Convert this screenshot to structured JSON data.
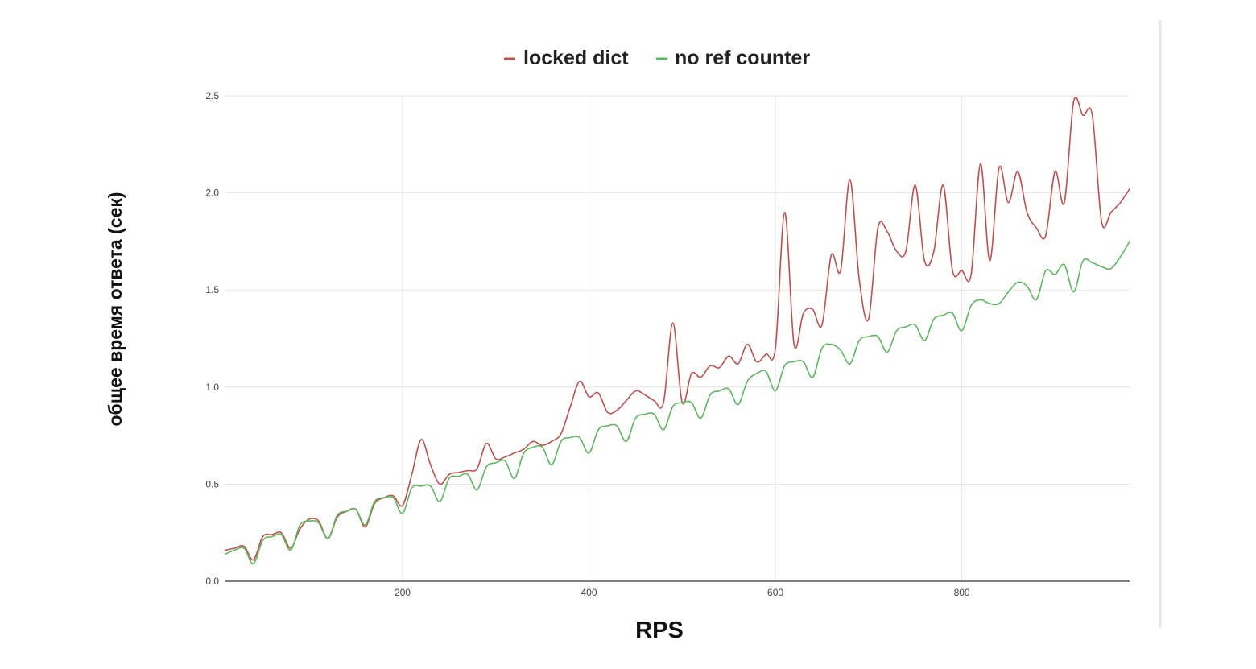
{
  "chart_data": {
    "type": "line",
    "title": "",
    "xlabel": "RPS",
    "ylabel": "общее время ответа (сек)",
    "xlim": [
      10,
      980
    ],
    "ylim": [
      0,
      2.5
    ],
    "x_ticks": [
      "200",
      "400",
      "600",
      "800"
    ],
    "y_ticks": [
      "0.0",
      "0.5",
      "1.0",
      "1.5",
      "2.0",
      "2.5"
    ],
    "grid": true,
    "legend_position": "top-center",
    "series": [
      {
        "name": "locked dict",
        "color": "#c0504d",
        "x": [
          10,
          20,
          30,
          40,
          50,
          60,
          70,
          80,
          90,
          100,
          110,
          120,
          130,
          140,
          150,
          160,
          170,
          180,
          190,
          200,
          210,
          220,
          230,
          240,
          250,
          260,
          270,
          280,
          290,
          300,
          310,
          320,
          330,
          340,
          350,
          360,
          370,
          380,
          390,
          400,
          410,
          420,
          430,
          440,
          450,
          460,
          470,
          480,
          490,
          500,
          510,
          520,
          530,
          540,
          550,
          560,
          570,
          580,
          590,
          600,
          610,
          620,
          630,
          640,
          650,
          660,
          670,
          680,
          690,
          700,
          710,
          720,
          730,
          740,
          750,
          760,
          770,
          780,
          790,
          800,
          810,
          820,
          830,
          840,
          850,
          860,
          870,
          880,
          890,
          900,
          910,
          920,
          930,
          940,
          950,
          960,
          970,
          980
        ],
        "values": [
          0.16,
          0.17,
          0.18,
          0.11,
          0.23,
          0.24,
          0.25,
          0.17,
          0.27,
          0.32,
          0.31,
          0.22,
          0.33,
          0.36,
          0.37,
          0.28,
          0.4,
          0.43,
          0.44,
          0.39,
          0.55,
          0.73,
          0.6,
          0.5,
          0.55,
          0.56,
          0.57,
          0.58,
          0.71,
          0.63,
          0.64,
          0.66,
          0.68,
          0.72,
          0.7,
          0.72,
          0.76,
          0.9,
          1.03,
          0.95,
          0.97,
          0.87,
          0.88,
          0.93,
          0.98,
          0.96,
          0.93,
          0.92,
          1.33,
          0.92,
          1.07,
          1.05,
          1.11,
          1.1,
          1.16,
          1.12,
          1.22,
          1.13,
          1.17,
          1.2,
          1.9,
          1.22,
          1.38,
          1.4,
          1.32,
          1.68,
          1.6,
          2.07,
          1.55,
          1.35,
          1.82,
          1.8,
          1.7,
          1.7,
          2.04,
          1.65,
          1.7,
          2.04,
          1.6,
          1.6,
          1.58,
          2.15,
          1.65,
          2.13,
          1.95,
          2.11,
          1.9,
          1.82,
          1.78,
          2.11,
          1.95,
          2.47,
          2.4,
          2.4,
          1.85,
          1.9,
          1.95,
          2.02
        ]
      },
      {
        "name": "no ref counter",
        "color": "#5cb85c",
        "x": [
          10,
          20,
          30,
          40,
          50,
          60,
          70,
          80,
          90,
          100,
          110,
          120,
          130,
          140,
          150,
          160,
          170,
          180,
          190,
          200,
          210,
          220,
          230,
          240,
          250,
          260,
          270,
          280,
          290,
          300,
          310,
          320,
          330,
          340,
          350,
          360,
          370,
          380,
          390,
          400,
          410,
          420,
          430,
          440,
          450,
          460,
          470,
          480,
          490,
          500,
          510,
          520,
          530,
          540,
          550,
          560,
          570,
          580,
          590,
          600,
          610,
          620,
          630,
          640,
          650,
          660,
          670,
          680,
          690,
          700,
          710,
          720,
          730,
          740,
          750,
          760,
          770,
          780,
          790,
          800,
          810,
          820,
          830,
          840,
          850,
          860,
          870,
          880,
          890,
          900,
          910,
          920,
          930,
          940,
          950,
          960,
          970,
          980
        ],
        "values": [
          0.14,
          0.16,
          0.17,
          0.09,
          0.21,
          0.23,
          0.24,
          0.16,
          0.29,
          0.31,
          0.3,
          0.22,
          0.34,
          0.36,
          0.37,
          0.29,
          0.41,
          0.43,
          0.43,
          0.35,
          0.48,
          0.49,
          0.49,
          0.41,
          0.53,
          0.54,
          0.55,
          0.47,
          0.59,
          0.61,
          0.62,
          0.53,
          0.66,
          0.69,
          0.69,
          0.6,
          0.72,
          0.74,
          0.74,
          0.66,
          0.78,
          0.8,
          0.8,
          0.72,
          0.84,
          0.86,
          0.86,
          0.78,
          0.9,
          0.92,
          0.92,
          0.84,
          0.96,
          0.98,
          0.99,
          0.91,
          1.03,
          1.07,
          1.08,
          0.98,
          1.11,
          1.13,
          1.13,
          1.05,
          1.2,
          1.22,
          1.19,
          1.12,
          1.24,
          1.26,
          1.26,
          1.18,
          1.29,
          1.31,
          1.32,
          1.24,
          1.35,
          1.37,
          1.38,
          1.29,
          1.42,
          1.45,
          1.43,
          1.43,
          1.49,
          1.54,
          1.52,
          1.45,
          1.6,
          1.58,
          1.63,
          1.49,
          1.65,
          1.64,
          1.62,
          1.61,
          1.67,
          1.75
        ]
      }
    ]
  }
}
